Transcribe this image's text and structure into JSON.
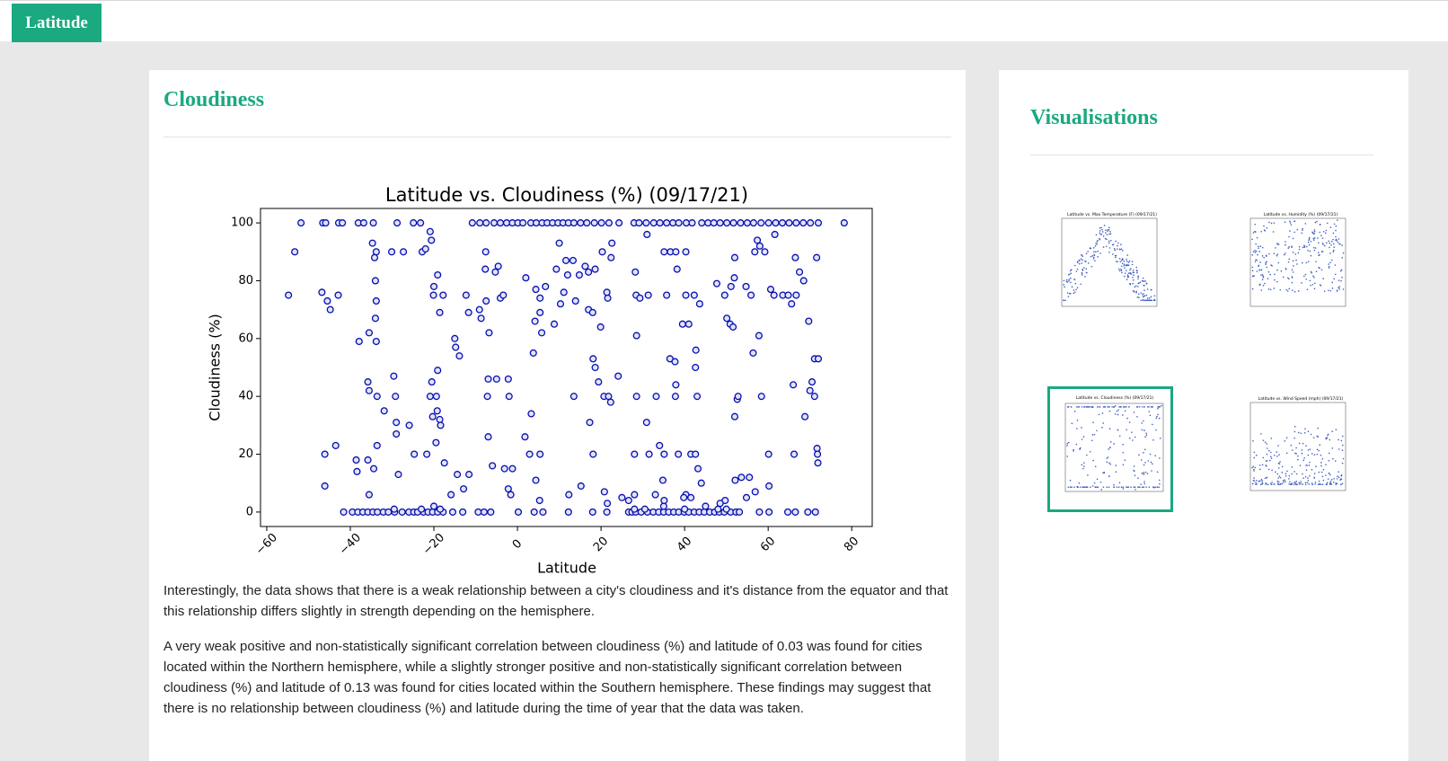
{
  "header": {
    "button": "Latitude"
  },
  "main": {
    "heading": "Cloudiness",
    "paragraphs": [
      "Interestingly, the data shows that there is a weak relationship between a city's cloudiness and it's distance from the equator and that this relationship differs slightly in strength depending on the hemisphere.",
      "A very weak positive and non-statistically significant correlation between cloudiness (%) and latitude of 0.03 was found for cities located within the Northern hemisphere, while a slightly stronger positive and non-statistically significant correlation between cloudiness (%) and latitude of 0.13 was found for cities located within the Southern hemisphere. These findings may suggest that there is no relationship between cloudiness (%) and latitude during the time of year that the data was taken."
    ]
  },
  "chart_data": {
    "type": "scatter",
    "title": "Latitude vs. Cloudiness (%) (09/17/21)",
    "x_label": "Latitude",
    "y_label": "Cloudiness (%)",
    "color": "#0b0bb0",
    "facecolor": "#dbe6f7",
    "xlim": [
      -61.5,
      84.9
    ],
    "ylim": [
      -5,
      105
    ],
    "xticks": [
      {
        "value": -60,
        "label": "−60"
      },
      {
        "value": -40,
        "label": "−40"
      },
      {
        "value": -20,
        "label": "−20"
      },
      0,
      20,
      40,
      60,
      80
    ],
    "yticks": [
      0,
      20,
      40,
      60,
      80,
      100
    ],
    "x": [
      -41.6,
      -39.5,
      -38.2,
      -37.0,
      -35.8,
      -34.6,
      -33.5,
      -32.1,
      -30.9,
      -29.4,
      -27.6,
      -26.0,
      -24.8,
      -23.9,
      -22.5,
      -21.4,
      -20.3,
      -19.1,
      -17.8,
      -15.5,
      -13.1,
      -9.4,
      -8.0,
      -6.4,
      4.0,
      6.1,
      12.2,
      18.0,
      21.4,
      26.6,
      27.4,
      28.3,
      29.6,
      31.1,
      32.5,
      33.8,
      35.0,
      36.2,
      37.4,
      38.6,
      39.9,
      41.0,
      42.3,
      43.5,
      44.7,
      46.0,
      47.2,
      48.3,
      49.5,
      51.0,
      52.3,
      53.1,
      57.9,
      60.2,
      64.7,
      66.5,
      69.5,
      71.3,
      -29.5,
      -23,
      -20,
      -18.5,
      28,
      30.5,
      35,
      40,
      45,
      48,
      50,
      -51.8,
      -46.6,
      -45.9,
      -42.8,
      -41.9,
      -38.1,
      -36.8,
      -34.5,
      -28.8,
      -24.9,
      -23.2,
      -10.8,
      -9.0,
      -7.5,
      -5.6,
      -4.1,
      -2.6,
      -1.2,
      0.1,
      1.3,
      3.2,
      4.5,
      5.9,
      7.1,
      8.4,
      9.7,
      10.9,
      12.2,
      13.5,
      15.1,
      16.6,
      18.4,
      20.1,
      21.9,
      24.3,
      27.9,
      29.1,
      30.8,
      32.6,
      34.1,
      35.7,
      37.2,
      38.6,
      40.4,
      41.8,
      44.1,
      45.6,
      47.0,
      48.5,
      50.1,
      51.7,
      53.4,
      55.0,
      56.5,
      58.3,
      60.1,
      61.8,
      63.4,
      65.0,
      66.7,
      68.4,
      70.1,
      72.0,
      78.2,
      -54.8,
      -53.3,
      -46.8,
      -45.5,
      -44.8,
      -42.9,
      -46.1,
      -46.1,
      -43.5,
      -37.9,
      -35.5,
      -33.8,
      -34.7,
      -33.8,
      -34.2,
      -34.0,
      -33.8,
      -34,
      -35.8,
      -35.5,
      -33.6,
      -31.9,
      -38.6,
      -38.4,
      -35.8,
      -33.6,
      -34.4,
      -35.5,
      -30.1,
      -27.3,
      -29.6,
      -29.2,
      -29.0,
      -29.0,
      -28.5,
      -25.9,
      -22.8,
      -22.0,
      -20.6,
      -20.9,
      -20.0,
      -20.1,
      -19.1,
      -17.8,
      -18.6,
      -20.5,
      -20.9,
      -19.4,
      -19.1,
      -20.3,
      -19.2,
      -18.6,
      -18.4,
      -19.5,
      -24.7,
      -21.7,
      -17.5,
      -14.4,
      -12.9,
      -15.9,
      -11.6,
      -13.9,
      -15.0,
      -14.8,
      -11.7,
      -12.3,
      -9.1,
      -8.7,
      -7.5,
      -6.8,
      -7.7,
      -7.6,
      -5.3,
      -4.6,
      -4.1,
      -3.4,
      -7.0,
      -7.2,
      -5.0,
      -2.2,
      -2.0,
      -7.0,
      -6.0,
      -3.1,
      -1.2,
      -2.2,
      -1.6,
      0.2,
      1.8,
      2.9,
      5.4,
      4.4,
      5.3,
      3.3,
      3.8,
      4.2,
      5.4,
      5.8,
      8.8,
      2.0,
      4.4,
      5.4,
      6.7,
      10.3,
      11.1,
      13.9,
      14.8,
      17.0,
      18.0,
      19.9,
      21.6,
      21.4,
      13.5,
      17.3,
      20.7,
      21.8,
      22.3,
      24.1,
      18.1,
      18.6,
      19.4,
      18.1,
      20.8,
      21.5,
      25.0,
      26.6,
      15.2,
      12.3,
      9.3,
      10.0,
      11.6,
      12.0,
      13.3,
      16.2,
      17.0,
      18.6,
      20.3,
      22.4,
      22.6,
      28.2,
      28.4,
      29.3,
      31.3,
      28.5,
      28.5,
      30.9,
      33.2,
      34.0,
      35.1,
      34.8,
      31.5,
      28.0,
      31.0,
      35.1,
      36.6,
      37.9,
      38.2,
      40.3,
      39.5,
      35.7,
      40.3,
      42.3,
      43.6,
      41.0,
      36.5,
      37.7,
      42.7,
      42.6,
      37.9,
      37.8,
      43.0,
      41.5,
      38.5,
      42.6,
      43.2,
      40.3,
      41.5,
      47.7,
      49.6,
      52.0,
      51.9,
      51.1,
      50.1,
      50.9,
      51.6,
      52.0,
      52.6,
      52.8,
      54.7,
      55.9,
      56.4,
      57.8,
      58.4,
      56.8,
      57.4,
      58.0,
      59.2,
      61.6,
      60.6,
      61.4,
      63.5,
      64.8,
      65.6,
      66.7,
      67.5,
      68.5,
      66.5,
      69.7,
      68.8,
      70.0,
      71.1,
      72.0,
      71.1,
      71.7,
      71.8,
      71.9,
      71.6,
      60.1,
      60.2,
      66.2,
      55.5,
      56.9,
      54.8,
      53.6,
      52.1,
      49.7,
      48.5,
      35.1,
      39.8,
      28.0,
      33.0,
      44.0,
      66.0,
      70.5
    ],
    "values": [
      0,
      0,
      0,
      0,
      0,
      0,
      0,
      0,
      0,
      0,
      0,
      0,
      0,
      0,
      0,
      0,
      0,
      0,
      0,
      0,
      0,
      0,
      0,
      0,
      0,
      0,
      0,
      0,
      0,
      0,
      0,
      0,
      0,
      0,
      0,
      0,
      0,
      0,
      0,
      0,
      0,
      0,
      0,
      0,
      0,
      0,
      0,
      0,
      0,
      0,
      0,
      0,
      0,
      0,
      0,
      0,
      0,
      0,
      1,
      1,
      2,
      1,
      1,
      1,
      2,
      1,
      2,
      1,
      1,
      100,
      100,
      100,
      100,
      100,
      100,
      100,
      100,
      100,
      100,
      100,
      100,
      100,
      100,
      100,
      100,
      100,
      100,
      100,
      100,
      100,
      100,
      100,
      100,
      100,
      100,
      100,
      100,
      100,
      100,
      100,
      100,
      100,
      100,
      100,
      100,
      100,
      100,
      100,
      100,
      100,
      100,
      100,
      100,
      100,
      100,
      100,
      100,
      100,
      100,
      100,
      100,
      100,
      100,
      100,
      100,
      100,
      100,
      100,
      100,
      100,
      100,
      100,
      100,
      75,
      90,
      76,
      73,
      70,
      75,
      20,
      9,
      23,
      59,
      62,
      59,
      93,
      90,
      88,
      80,
      73,
      67,
      45,
      42,
      40,
      35,
      18,
      14,
      18,
      23,
      15,
      6,
      90,
      90,
      47,
      40,
      31,
      27,
      13,
      30,
      90,
      91,
      94,
      97,
      78,
      75,
      82,
      75,
      69,
      45,
      40,
      40,
      49,
      33,
      35,
      32,
      30,
      24,
      20,
      20,
      17,
      13,
      8,
      6,
      13,
      54,
      60,
      57,
      69,
      75,
      70,
      67,
      73,
      62,
      84,
      90,
      83,
      85,
      74,
      75,
      46,
      40,
      46,
      46,
      40,
      26,
      16,
      15,
      15,
      8,
      6,
      0,
      26,
      20,
      20,
      11,
      4,
      34,
      55,
      66,
      69,
      62,
      65,
      81,
      77,
      74,
      78,
      72,
      76,
      73,
      82,
      70,
      69,
      64,
      74,
      76,
      40,
      31,
      40,
      40,
      38,
      47,
      53,
      50,
      45,
      20,
      7,
      3,
      5,
      4,
      9,
      6,
      84,
      93,
      87,
      82,
      87,
      85,
      83,
      84,
      90,
      88,
      93,
      83,
      75,
      74,
      75,
      61,
      40,
      31,
      40,
      23,
      20,
      11,
      20,
      20,
      96,
      90,
      90,
      90,
      84,
      90,
      65,
      75,
      75,
      75,
      72,
      65,
      53,
      52,
      56,
      50,
      44,
      40,
      40,
      20,
      20,
      20,
      15,
      6,
      5,
      79,
      75,
      88,
      81,
      78,
      67,
      65,
      64,
      33,
      39,
      40,
      78,
      75,
      55,
      61,
      40,
      90,
      94,
      92,
      90,
      96,
      77,
      75,
      75,
      75,
      72,
      75,
      83,
      80,
      88,
      66,
      33,
      42,
      53,
      53,
      40,
      22,
      20,
      17,
      88,
      20,
      9,
      20,
      12,
      7,
      5,
      12,
      11,
      4,
      3,
      4,
      5,
      6,
      6,
      10,
      44,
      45
    ]
  },
  "sidebar": {
    "heading": "Visualisations",
    "thumbnails": [
      {
        "title": "Latitude vs. Max Temperature (F) (09/17/21)"
      },
      {
        "title": "Latitude vs. Humidity (%) (09/17/21)"
      },
      {
        "title": "Latitude vs. Cloudiness (%) (09/17/21)"
      },
      {
        "title": "Latitude vs. Wind Speed (mph) (09/17/21)"
      }
    ]
  }
}
